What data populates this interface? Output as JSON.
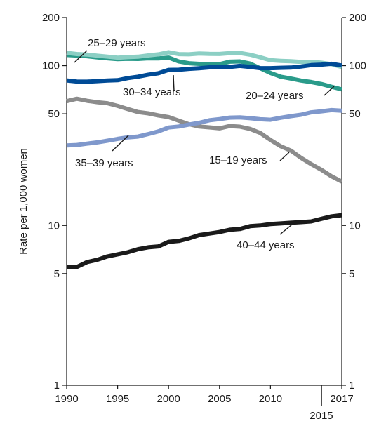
{
  "chart_data": {
    "type": "line",
    "title": "",
    "xlabel": "",
    "ylabel": "Rate per 1,000 women",
    "yscale": "log",
    "ylim": [
      1,
      200
    ],
    "xlim": [
      1990,
      2017
    ],
    "y_ticks": [
      1,
      5,
      10,
      50,
      100,
      200
    ],
    "y_tick_labels": [
      "1",
      "5",
      "10",
      "50",
      "100",
      "200"
    ],
    "x_ticks": [
      1990,
      1995,
      2000,
      2005,
      2010,
      2017
    ],
    "x_tick_labels": [
      "1990",
      "1995",
      "2000",
      "2005",
      "2010",
      "2017"
    ],
    "x_extra_tick": {
      "value": 2015,
      "label": "2015"
    },
    "right_axis_mirrored": true,
    "grid": false,
    "legend": "inline labels",
    "x": [
      1990,
      1991,
      1992,
      1993,
      1994,
      1995,
      1996,
      1997,
      1998,
      1999,
      2000,
      2001,
      2002,
      2003,
      2004,
      2005,
      2006,
      2007,
      2008,
      2009,
      2010,
      2011,
      2012,
      2013,
      2014,
      2015,
      2016,
      2017
    ],
    "series": [
      {
        "name": "15–19 years",
        "color": "#8c8c8c",
        "values": [
          59.9,
          62.1,
          60.3,
          59.0,
          58.2,
          56.0,
          53.5,
          51.3,
          50.3,
          48.8,
          47.7,
          45.3,
          43.0,
          41.6,
          41.1,
          40.5,
          41.9,
          41.5,
          40.2,
          37.9,
          34.3,
          31.3,
          29.4,
          26.5,
          24.2,
          22.3,
          20.3,
          18.8
        ]
      },
      {
        "name": "20–24 years",
        "color": "#2a9b8a",
        "values": [
          116.5,
          115.7,
          114.6,
          112.6,
          111.1,
          109.8,
          110.4,
          110.1,
          111.2,
          111.0,
          112.3,
          106.2,
          103.6,
          102.6,
          101.7,
          102.2,
          105.9,
          106.3,
          103.0,
          96.3,
          90.0,
          85.3,
          83.1,
          80.7,
          79.0,
          76.8,
          73.8,
          71.0
        ]
      },
      {
        "name": "25–29 years",
        "color": "#8ccfc4",
        "values": [
          120.2,
          118.2,
          117.4,
          115.5,
          113.9,
          112.2,
          113.1,
          113.8,
          115.9,
          117.8,
          121.4,
          118.1,
          117.8,
          119.2,
          118.5,
          118.3,
          119.8,
          120.0,
          117.1,
          112.7,
          108.2,
          107.2,
          106.5,
          105.5,
          105.8,
          104.3,
          102.1,
          98.0
        ]
      },
      {
        "name": "30–34 years",
        "color": "#004b96",
        "values": [
          80.8,
          79.5,
          79.4,
          80.0,
          80.7,
          81.1,
          83.6,
          85.3,
          87.7,
          89.6,
          94.1,
          94.3,
          95.5,
          96.4,
          97.6,
          97.7,
          98.1,
          99.6,
          98.1,
          96.5,
          96.5,
          97.0,
          97.3,
          98.7,
          100.8,
          101.5,
          102.7,
          100.3
        ]
      },
      {
        "name": "35–39 years",
        "color": "#7f98cc",
        "values": [
          31.7,
          31.9,
          32.5,
          33.1,
          33.9,
          34.8,
          35.6,
          36.0,
          37.3,
          38.8,
          41.0,
          41.6,
          42.8,
          43.9,
          45.5,
          46.3,
          47.3,
          47.5,
          46.9,
          46.2,
          45.9,
          47.2,
          48.3,
          49.3,
          51.0,
          51.8,
          52.7,
          52.3
        ]
      },
      {
        "name": "40–44 years",
        "color": "#1a1a1a",
        "values": [
          5.5,
          5.5,
          5.9,
          6.1,
          6.4,
          6.6,
          6.8,
          7.1,
          7.3,
          7.4,
          7.9,
          8.0,
          8.3,
          8.7,
          8.9,
          9.1,
          9.4,
          9.5,
          9.9,
          10.0,
          10.2,
          10.3,
          10.4,
          10.5,
          10.6,
          11.0,
          11.4,
          11.6
        ]
      }
    ],
    "series_labels": [
      {
        "text": "25–29 years",
        "series": "25–29 years"
      },
      {
        "text": "30–34 years",
        "series": "30–34 years"
      },
      {
        "text": "20–24 years",
        "series": "20–24 years"
      },
      {
        "text": "35–39 years",
        "series": "35–39 years"
      },
      {
        "text": "15–19 years",
        "series": "15–19 years"
      },
      {
        "text": "40–44 years",
        "series": "40–44 years"
      }
    ]
  }
}
